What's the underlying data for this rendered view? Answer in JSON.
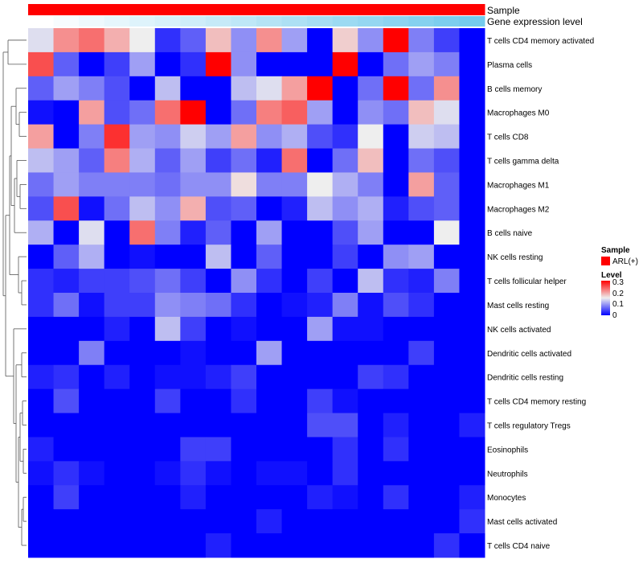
{
  "chart_data": {
    "type": "heatmap",
    "title": "",
    "annotations": [
      {
        "name": "Sample",
        "type": "categorical",
        "values": [
          "ARL(+)",
          "ARL(+)",
          "ARL(+)",
          "ARL(+)",
          "ARL(+)",
          "ARL(+)",
          "ARL(+)",
          "ARL(+)",
          "ARL(+)",
          "ARL(+)",
          "ARL(+)",
          "ARL(+)",
          "ARL(+)",
          "ARL(+)",
          "ARL(+)",
          "ARL(+)",
          "ARL(+)",
          "ARL(+)"
        ]
      },
      {
        "name": "Gene expression level",
        "type": "continuous",
        "values": [
          0.0,
          0.06,
          0.12,
          0.18,
          0.24,
          0.29,
          0.35,
          0.41,
          0.47,
          0.53,
          0.59,
          0.65,
          0.71,
          0.76,
          0.82,
          0.88,
          0.94,
          1.0
        ]
      }
    ],
    "rows": [
      "T cells CD4 memory activated",
      "Plasma cells",
      "B cells memory",
      "Macrophages M0",
      "T cells CD8",
      "T cells gamma delta",
      "Macrophages M1",
      "Macrophages M2",
      "B cells naive",
      "NK cells resting",
      "T cells follicular helper",
      "Mast cells resting",
      "NK cells activated",
      "Dendritic cells activated",
      "Dendritic cells resting",
      "T cells CD4 memory resting",
      "T cells regulatory  Tregs",
      "Eosinophils",
      "Neutrophils",
      "Monocytes",
      "Mast cells activated",
      "T cells CD4 naive"
    ],
    "columns": 18,
    "values": [
      [
        0.14,
        0.21,
        0.23,
        0.19,
        0.15,
        0.03,
        0.06,
        0.18,
        0.09,
        0.21,
        0.1,
        0.0,
        0.17,
        0.09,
        0.3,
        0.08,
        0.04,
        0.0
      ],
      [
        0.25,
        0.06,
        0.0,
        0.04,
        0.1,
        0.0,
        0.03,
        0.3,
        0.09,
        0.0,
        0.0,
        0.0,
        0.3,
        0.0,
        0.07,
        0.1,
        0.08,
        0.0
      ],
      [
        0.06,
        0.1,
        0.08,
        0.05,
        0.0,
        0.12,
        0.0,
        0.0,
        0.12,
        0.14,
        0.2,
        0.3,
        0.0,
        0.07,
        0.3,
        0.07,
        0.21,
        0.0
      ],
      [
        0.01,
        0.0,
        0.2,
        0.05,
        0.07,
        0.23,
        0.3,
        0.0,
        0.07,
        0.22,
        0.24,
        0.1,
        0.0,
        0.09,
        0.07,
        0.18,
        0.14,
        0.0
      ],
      [
        0.2,
        0.0,
        0.08,
        0.27,
        0.1,
        0.09,
        0.13,
        0.1,
        0.2,
        0.09,
        0.11,
        0.05,
        0.03,
        0.15,
        0.0,
        0.13,
        0.12,
        0.0
      ],
      [
        0.12,
        0.1,
        0.06,
        0.22,
        0.11,
        0.06,
        0.1,
        0.04,
        0.07,
        0.02,
        0.23,
        0.0,
        0.07,
        0.18,
        0.0,
        0.07,
        0.05,
        0.0
      ],
      [
        0.07,
        0.1,
        0.08,
        0.08,
        0.08,
        0.07,
        0.09,
        0.09,
        0.16,
        0.08,
        0.08,
        0.15,
        0.11,
        0.08,
        0.0,
        0.2,
        0.06,
        0.0
      ],
      [
        0.05,
        0.25,
        0.01,
        0.07,
        0.12,
        0.09,
        0.19,
        0.05,
        0.06,
        0.0,
        0.02,
        0.12,
        0.09,
        0.11,
        0.02,
        0.05,
        0.06,
        0.0
      ],
      [
        0.11,
        0.0,
        0.14,
        0.0,
        0.23,
        0.08,
        0.02,
        0.06,
        0.0,
        0.1,
        0.0,
        0.0,
        0.05,
        0.1,
        0.0,
        0.0,
        0.15,
        0.0
      ],
      [
        0.0,
        0.06,
        0.11,
        0.0,
        0.01,
        0.0,
        0.0,
        0.12,
        0.0,
        0.06,
        0.0,
        0.0,
        0.04,
        0.0,
        0.09,
        0.1,
        0.0,
        0.0
      ],
      [
        0.03,
        0.02,
        0.04,
        0.04,
        0.05,
        0.07,
        0.04,
        0.0,
        0.09,
        0.03,
        0.0,
        0.04,
        0.0,
        0.12,
        0.03,
        0.02,
        0.08,
        0.0
      ],
      [
        0.03,
        0.07,
        0.01,
        0.04,
        0.04,
        0.09,
        0.08,
        0.07,
        0.03,
        0.0,
        0.01,
        0.02,
        0.08,
        0.01,
        0.05,
        0.03,
        0.0,
        0.0
      ],
      [
        0.0,
        0.0,
        0.0,
        0.02,
        0.0,
        0.12,
        0.04,
        0.0,
        0.01,
        0.0,
        0.0,
        0.1,
        0.01,
        0.01,
        0.0,
        0.0,
        0.0,
        0.0
      ],
      [
        0.0,
        0.0,
        0.08,
        0.0,
        0.0,
        0.0,
        0.01,
        0.0,
        0.0,
        0.1,
        0.0,
        0.0,
        0.0,
        0.0,
        0.0,
        0.04,
        0.0,
        0.0
      ],
      [
        0.02,
        0.03,
        0.0,
        0.02,
        0.0,
        0.01,
        0.01,
        0.02,
        0.04,
        0.0,
        0.0,
        0.0,
        0.0,
        0.04,
        0.03,
        0.0,
        0.0,
        0.0
      ],
      [
        0.0,
        0.05,
        0.0,
        0.0,
        0.0,
        0.04,
        0.0,
        0.0,
        0.03,
        0.0,
        0.0,
        0.04,
        0.01,
        0.0,
        0.0,
        0.0,
        0.0,
        0.0
      ],
      [
        0.0,
        0.0,
        0.0,
        0.0,
        0.0,
        0.0,
        0.0,
        0.0,
        0.0,
        0.0,
        0.0,
        0.05,
        0.05,
        0.0,
        0.02,
        0.0,
        0.0,
        0.02
      ],
      [
        0.02,
        0.0,
        0.0,
        0.0,
        0.0,
        0.0,
        0.04,
        0.04,
        0.0,
        0.0,
        0.0,
        0.0,
        0.03,
        0.0,
        0.03,
        0.0,
        0.0,
        0.0
      ],
      [
        0.01,
        0.03,
        0.01,
        0.0,
        0.0,
        0.01,
        0.03,
        0.01,
        0.0,
        0.01,
        0.01,
        0.0,
        0.03,
        0.0,
        0.0,
        0.0,
        0.0,
        0.0
      ],
      [
        0.0,
        0.04,
        0.0,
        0.0,
        0.0,
        0.0,
        0.02,
        0.0,
        0.0,
        0.0,
        0.0,
        0.02,
        0.01,
        0.0,
        0.03,
        0.0,
        0.0,
        0.02
      ],
      [
        0.0,
        0.0,
        0.0,
        0.0,
        0.0,
        0.0,
        0.0,
        0.0,
        0.0,
        0.02,
        0.0,
        0.0,
        0.0,
        0.0,
        0.0,
        0.0,
        0.0,
        0.03
      ],
      [
        0.0,
        0.0,
        0.0,
        0.0,
        0.0,
        0.0,
        0.0,
        0.02,
        0.0,
        0.0,
        0.0,
        0.0,
        0.0,
        0.0,
        0.0,
        0.0,
        0.03,
        0.0
      ]
    ],
    "color_scale": {
      "min": 0,
      "mid": 0.15,
      "max": 0.3,
      "low_color": "#0000ff",
      "mid_color": "#eeeeee",
      "high_color": "#ff0000"
    },
    "legend": {
      "sample_title": "Sample",
      "sample_entry": "ARL(+)",
      "sample_color": "#ff0000",
      "level_title": "Level",
      "level_ticks": [
        "0.3",
        "0.2",
        "0.1",
        "0"
      ]
    },
    "annotation_colors": {
      "expr_low": "#ffffff",
      "expr_high": "#74cbed"
    },
    "legend_placement": "right",
    "row_dendrogram": "left"
  }
}
